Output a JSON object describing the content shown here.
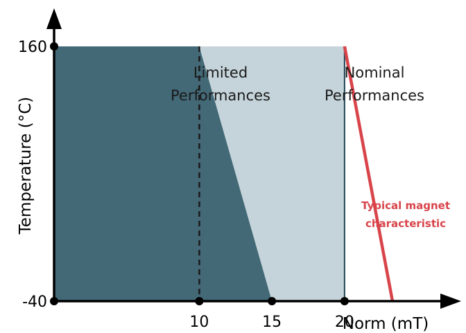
{
  "chart_data": {
    "type": "area",
    "title": "",
    "xlabel": "Norm (mT)",
    "ylabel": "Temperature (°C)",
    "xlim": [
      0,
      26.5
    ],
    "ylim": [
      -40,
      160
    ],
    "xticks": [
      {
        "value": 10,
        "label": "10"
      },
      {
        "value": 15,
        "label": "15"
      },
      {
        "value": 20,
        "label": "20"
      }
    ],
    "yticks": [
      {
        "value": 160,
        "label": "160"
      },
      {
        "value": -40,
        "label": "-40"
      }
    ],
    "regions": [
      {
        "name": "",
        "color": "#436977",
        "points": [
          [
            0,
            -40
          ],
          [
            0,
            160
          ],
          [
            10,
            160
          ],
          [
            15,
            -40
          ]
        ]
      },
      {
        "name": "Limited Performances",
        "label_lines": [
          "Limited",
          "Performances"
        ],
        "color": "#c5d4da",
        "points": [
          [
            10,
            160
          ],
          [
            20,
            160
          ],
          [
            20,
            -40
          ],
          [
            15,
            -40
          ]
        ]
      },
      {
        "name": "Nominal Performances",
        "label_lines": [
          "Nominal",
          "Performances"
        ],
        "color": "#ffffff",
        "points": []
      }
    ],
    "series": [
      {
        "name": "Typical magnet characteristic",
        "label_lines": [
          "Typical magnet",
          "characteristic"
        ],
        "color": "#d8444a",
        "x": [
          20,
          23.3
        ],
        "y": [
          160,
          -40
        ]
      }
    ],
    "reference_lines": [
      {
        "axis": "x",
        "value": 10,
        "style": "dashed",
        "color": "#1a1a1a"
      },
      {
        "axis": "x",
        "value": 20,
        "style": "solid",
        "color": "#1f4452"
      }
    ],
    "marker_points": [
      [
        0,
        160
      ],
      [
        0,
        -40
      ],
      [
        10,
        -40
      ],
      [
        15,
        -40
      ],
      [
        20,
        -40
      ]
    ],
    "axis_color": "#000000"
  }
}
